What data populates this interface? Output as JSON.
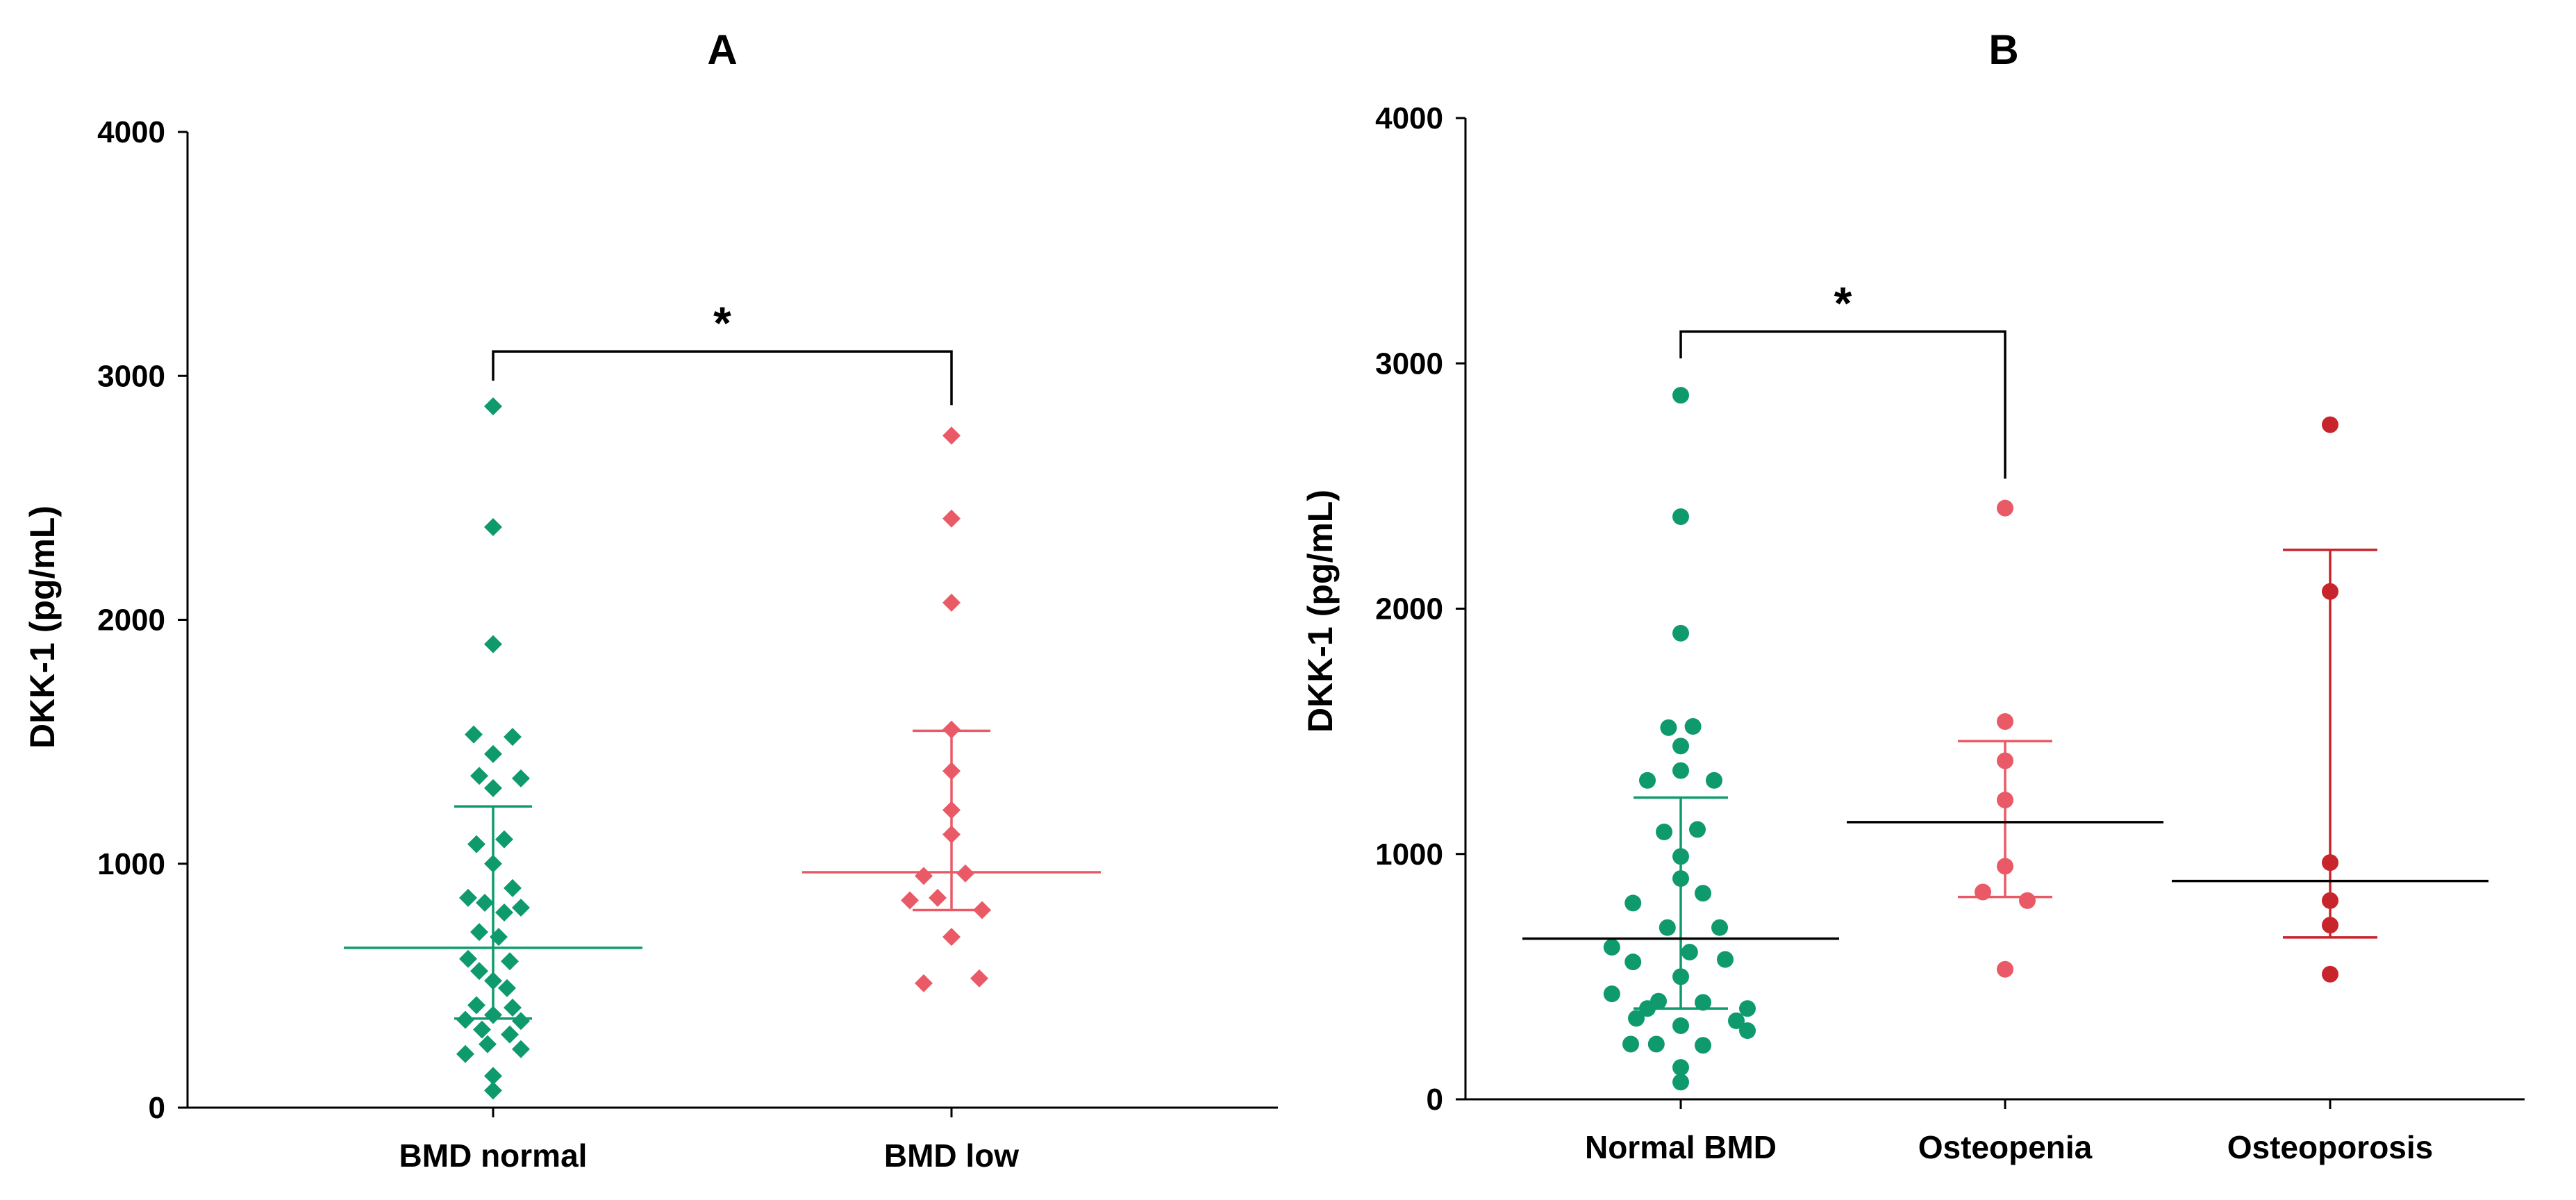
{
  "chart_data": [
    {
      "type": "scatter",
      "panel": "A",
      "title": "A",
      "xlabel": "",
      "ylabel": "DKK-1 (pg/mL)",
      "ylim": [
        0,
        4000
      ],
      "yticks": [
        0,
        1000,
        2000,
        3000,
        4000
      ],
      "marker": "diamond",
      "categories": [
        "BMD normal",
        "BMD low"
      ],
      "series": [
        {
          "name": "BMD normal",
          "color": "#0e9a6d",
          "median": 655,
          "iqr": [
            365,
            1235
          ],
          "median_line_color": "#0e9a6d",
          "points": [
            {
              "dx": 0,
              "y": 2875
            },
            {
              "dx": 0,
              "y": 2380
            },
            {
              "dx": 0,
              "y": 1900
            },
            {
              "dx": -7,
              "y": 1530
            },
            {
              "dx": 7,
              "y": 1520
            },
            {
              "dx": 0,
              "y": 1450
            },
            {
              "dx": -5,
              "y": 1360
            },
            {
              "dx": 10,
              "y": 1350
            },
            {
              "dx": 0,
              "y": 1310
            },
            {
              "dx": -6,
              "y": 1080
            },
            {
              "dx": 4,
              "y": 1100
            },
            {
              "dx": 0,
              "y": 1000
            },
            {
              "dx": 7,
              "y": 900
            },
            {
              "dx": -9,
              "y": 860
            },
            {
              "dx": -3,
              "y": 840
            },
            {
              "dx": 10,
              "y": 820
            },
            {
              "dx": 4,
              "y": 800
            },
            {
              "dx": -5,
              "y": 720
            },
            {
              "dx": 2,
              "y": 700
            },
            {
              "dx": -9,
              "y": 610
            },
            {
              "dx": 6,
              "y": 600
            },
            {
              "dx": -5,
              "y": 560
            },
            {
              "dx": 0,
              "y": 520
            },
            {
              "dx": 5,
              "y": 490
            },
            {
              "dx": -6,
              "y": 420
            },
            {
              "dx": 7,
              "y": 410
            },
            {
              "dx": 0,
              "y": 380
            },
            {
              "dx": -10,
              "y": 360
            },
            {
              "dx": 10,
              "y": 355
            },
            {
              "dx": -4,
              "y": 320
            },
            {
              "dx": 6,
              "y": 300
            },
            {
              "dx": -2,
              "y": 260
            },
            {
              "dx": 10,
              "y": 240
            },
            {
              "dx": -10,
              "y": 220
            },
            {
              "dx": 0,
              "y": 130
            },
            {
              "dx": 0,
              "y": 70
            }
          ]
        },
        {
          "name": "BMD low",
          "color": "#ea5a66",
          "median": 965,
          "iqr": [
            810,
            1545
          ],
          "median_line_color": "#ea5a66",
          "points": [
            {
              "dx": 0,
              "y": 2755
            },
            {
              "dx": 0,
              "y": 2415
            },
            {
              "dx": 0,
              "y": 2070
            },
            {
              "dx": 0,
              "y": 1550
            },
            {
              "dx": 0,
              "y": 1380
            },
            {
              "dx": 0,
              "y": 1220
            },
            {
              "dx": 0,
              "y": 1120
            },
            {
              "dx": -10,
              "y": 950
            },
            {
              "dx": 5,
              "y": 960
            },
            {
              "dx": -15,
              "y": 850
            },
            {
              "dx": -5,
              "y": 860
            },
            {
              "dx": 11,
              "y": 810
            },
            {
              "dx": 0,
              "y": 700
            },
            {
              "dx": -10,
              "y": 510
            },
            {
              "dx": 10,
              "y": 530
            }
          ]
        }
      ],
      "significance": [
        {
          "from": "BMD normal",
          "to": "BMD low",
          "bracket_y": 3100,
          "left_drop_to": 2980,
          "right_drop_to": 2880,
          "label": "*"
        }
      ]
    },
    {
      "type": "scatter",
      "panel": "B",
      "title": "B",
      "xlabel": "",
      "ylabel": "DKK-1 (pg/mL)",
      "ylim": [
        0,
        4000
      ],
      "yticks": [
        0,
        1000,
        2000,
        3000,
        4000
      ],
      "marker": "circle",
      "categories": [
        "Normal BMD",
        "Osteopenia",
        "Osteoporosis"
      ],
      "series": [
        {
          "name": "Normal BMD",
          "color": "#0e9a6d",
          "median": 655,
          "iqr": [
            370,
            1230
          ],
          "median_line_color": "#000000",
          "points": [
            {
              "dx": 0,
              "y": 2870
            },
            {
              "dx": 0,
              "y": 2375
            },
            {
              "dx": 0,
              "y": 1900
            },
            {
              "dx": -11,
              "y": 1515
            },
            {
              "dx": 11,
              "y": 1520
            },
            {
              "dx": 0,
              "y": 1440
            },
            {
              "dx": -30,
              "y": 1300
            },
            {
              "dx": 30,
              "y": 1300
            },
            {
              "dx": 0,
              "y": 1340
            },
            {
              "dx": -15,
              "y": 1090
            },
            {
              "dx": 15,
              "y": 1100
            },
            {
              "dx": 0,
              "y": 990
            },
            {
              "dx": -43,
              "y": 800
            },
            {
              "dx": 20,
              "y": 840
            },
            {
              "dx": 0,
              "y": 900
            },
            {
              "dx": -12,
              "y": 700
            },
            {
              "dx": 35,
              "y": 700
            },
            {
              "dx": -62,
              "y": 620
            },
            {
              "dx": 8,
              "y": 600
            },
            {
              "dx": -43,
              "y": 560
            },
            {
              "dx": 40,
              "y": 570
            },
            {
              "dx": 0,
              "y": 500
            },
            {
              "dx": -62,
              "y": 430
            },
            {
              "dx": -20,
              "y": 400
            },
            {
              "dx": 20,
              "y": 395
            },
            {
              "dx": -30,
              "y": 370
            },
            {
              "dx": 60,
              "y": 370
            },
            {
              "dx": -40,
              "y": 330
            },
            {
              "dx": 50,
              "y": 320
            },
            {
              "dx": 0,
              "y": 300
            },
            {
              "dx": -22,
              "y": 225
            },
            {
              "dx": 20,
              "y": 220
            },
            {
              "dx": 0,
              "y": 130
            },
            {
              "dx": 0,
              "y": 70
            },
            {
              "dx": 60,
              "y": 280
            },
            {
              "dx": -45,
              "y": 225
            }
          ]
        },
        {
          "name": "Osteopenia",
          "color": "#ea5a66",
          "median": 1130,
          "iqr": [
            825,
            1460
          ],
          "median_line_color": "#000000",
          "points": [
            {
              "dx": 0,
              "y": 2410
            },
            {
              "dx": 0,
              "y": 1540
            },
            {
              "dx": 0,
              "y": 1380
            },
            {
              "dx": 0,
              "y": 1220
            },
            {
              "dx": 0,
              "y": 950
            },
            {
              "dx": -20,
              "y": 845
            },
            {
              "dx": 20,
              "y": 810
            },
            {
              "dx": 0,
              "y": 530
            }
          ]
        },
        {
          "name": "Osteoporosis",
          "color": "#c8242b",
          "median": 890,
          "iqr": [
            660,
            2240
          ],
          "median_line_color": "#000000",
          "points": [
            {
              "dx": 0,
              "y": 2750
            },
            {
              "dx": 0,
              "y": 2070
            },
            {
              "dx": 0,
              "y": 965
            },
            {
              "dx": 0,
              "y": 810
            },
            {
              "dx": 0,
              "y": 710
            },
            {
              "dx": 0,
              "y": 510
            }
          ]
        }
      ],
      "significance": [
        {
          "from": "Normal BMD",
          "to": "Osteopenia",
          "bracket_y": 3130,
          "left_drop_to": 3020,
          "right_drop_to": 2530,
          "label": "*"
        }
      ]
    }
  ]
}
